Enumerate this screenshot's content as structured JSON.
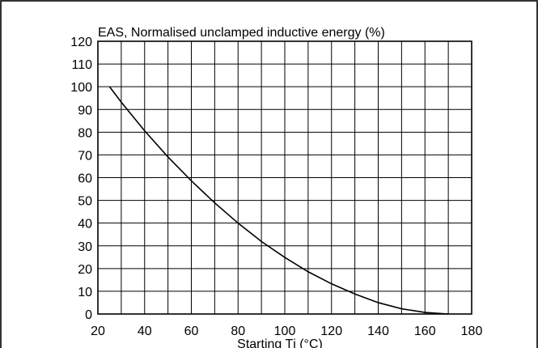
{
  "chart_data": {
    "type": "line",
    "title": "EAS, Normalised unclamped inductive energy (%)",
    "xlabel": "Starting Tj (°C)",
    "ylabel": "",
    "xlim": [
      20,
      180
    ],
    "ylim": [
      0,
      120
    ],
    "x_ticks": [
      20,
      40,
      60,
      80,
      100,
      120,
      140,
      160,
      180
    ],
    "y_ticks": [
      0,
      10,
      20,
      30,
      40,
      50,
      60,
      70,
      80,
      90,
      100,
      110,
      120
    ],
    "x_grid_step": 10,
    "y_grid_step": 10,
    "grid": true,
    "legend": "none",
    "series": [
      {
        "x": [
          25,
          30,
          40,
          50,
          60,
          70,
          80,
          90,
          100,
          110,
          120,
          130,
          140,
          150,
          160,
          170
        ],
        "y": [
          100,
          93.2,
          80.6,
          69.1,
          58.6,
          48.9,
          40.0,
          31.9,
          24.9,
          18.6,
          13.3,
          8.8,
          5.0,
          2.3,
          0.7,
          0
        ]
      }
    ],
    "colors": {
      "line": "#000000",
      "grid": "#000000",
      "background": "#ffffff"
    }
  }
}
